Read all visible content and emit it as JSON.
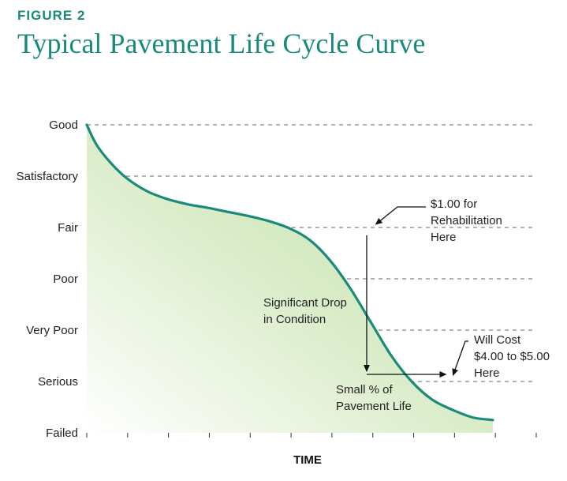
{
  "figure": {
    "label": "FIGURE 2",
    "title": "Typical Pavement Life Cycle Curve"
  },
  "chart_data": {
    "type": "area",
    "title": "Typical Pavement Life Cycle Curve",
    "xlabel": "TIME",
    "ylabel": "",
    "y_categories": [
      "Good",
      "Satisfactory",
      "Fair",
      "Poor",
      "Very Poor",
      "Serious",
      "Failed"
    ],
    "ylim": [
      0,
      6
    ],
    "xlim": [
      0,
      10
    ],
    "x_tick_count": 12,
    "grid": "dashed horizontal",
    "series": [
      {
        "x": [
          0,
          0.25,
          0.6,
          1.0,
          1.5,
          2.0,
          2.5,
          3.0,
          3.5,
          4.0,
          4.5,
          5.0,
          5.5,
          6.0,
          6.5,
          7.0,
          7.5,
          8.0,
          8.5,
          9.0,
          9.5,
          10.0
        ],
        "y": [
          6.0,
          5.6,
          5.25,
          4.95,
          4.7,
          4.55,
          4.45,
          4.38,
          4.3,
          4.22,
          4.12,
          3.98,
          3.75,
          3.35,
          2.8,
          2.15,
          1.5,
          1.0,
          0.65,
          0.45,
          0.3,
          0.25
        ]
      }
    ],
    "colors": {
      "curve": "#1a8a7a",
      "fill": "#c9e3b6",
      "grid": "#666666",
      "accent": "#1a8a7a"
    },
    "annotations": [
      {
        "text_lines": [
          "$1.00 for",
          "Rehabilitation",
          "Here"
        ],
        "x": 7.0,
        "y": 4.0
      },
      {
        "text_lines": [
          "Significant Drop",
          "in Condition"
        ],
        "x": 6.85,
        "y": 2.5
      },
      {
        "text_lines": [
          "Small % of",
          "Pavement Life"
        ],
        "x": 7.5,
        "y": 0.8
      },
      {
        "text_lines": [
          "Will Cost",
          "$4.00 to $5.00",
          "Here"
        ],
        "x": 9.0,
        "y": 1.0
      }
    ]
  }
}
